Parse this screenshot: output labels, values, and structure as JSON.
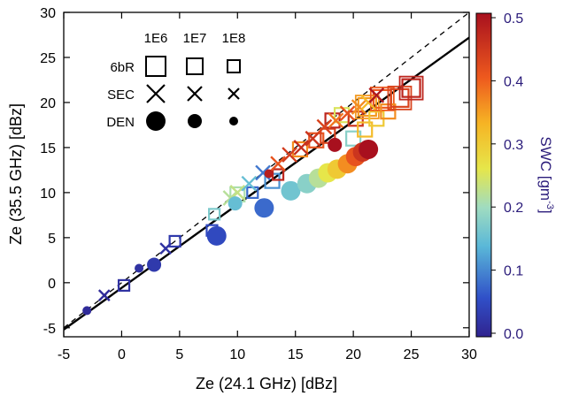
{
  "chart_data": {
    "type": "scatter",
    "xlabel": "Ze (24.1 GHz) [dBz]",
    "ylabel": "Ze (35.5 GHz) [dBz]",
    "xlim": [
      -5,
      30
    ],
    "ylim": [
      -6,
      30
    ],
    "x_ticks": [
      "-5",
      "0",
      "5",
      "10",
      "15",
      "20",
      "25",
      "30"
    ],
    "y_ticks": [
      "-5",
      "0",
      "5",
      "10",
      "15",
      "20",
      "25",
      "30"
    ],
    "reference_lines": [
      {
        "style": "dashed",
        "note": "1:1",
        "points": [
          [
            -5,
            -5
          ],
          [
            30,
            30
          ]
        ]
      },
      {
        "style": "solid",
        "points": [
          [
            -5,
            -5.2
          ],
          [
            30,
            27.2
          ]
        ]
      }
    ],
    "colorbar": {
      "label": "SWC [gm",
      "label_superscript": "-3",
      "label_close": "]",
      "range": [
        0,
        0.5
      ],
      "ticks": [
        "0.0",
        "0.1",
        "0.2",
        "0.3",
        "0.4",
        "0.5"
      ]
    },
    "legend": {
      "position": "top-left",
      "columns": [
        "1E6",
        "1E7",
        "1E8"
      ],
      "rows": [
        {
          "label": "6bR",
          "marker": "square"
        },
        {
          "label": "SEC",
          "marker": "x"
        },
        {
          "label": "DEN",
          "marker": "circle"
        }
      ]
    },
    "series": [
      {
        "name": "6bR",
        "marker": "square",
        "points": [
          {
            "x": 0.2,
            "y": -0.3,
            "swc": 0.02,
            "size": 1
          },
          {
            "x": 4.6,
            "y": 4.6,
            "swc": 0.03,
            "size": 1
          },
          {
            "x": 7.8,
            "y": 5.8,
            "swc": 0.05,
            "size": 1
          },
          {
            "x": 8.0,
            "y": 7.6,
            "swc": 0.17,
            "size": 1
          },
          {
            "x": 10.0,
            "y": 9.8,
            "swc": 0.21,
            "size": 2
          },
          {
            "x": 11.3,
            "y": 10.0,
            "swc": 0.08,
            "size": 1
          },
          {
            "x": 13.0,
            "y": 11.3,
            "swc": 0.11,
            "size": 2
          },
          {
            "x": 13.5,
            "y": 12.0,
            "swc": 0.47,
            "size": 1
          },
          {
            "x": 15.4,
            "y": 14.8,
            "swc": 0.36,
            "size": 2
          },
          {
            "x": 16.8,
            "y": 15.8,
            "swc": 0.41,
            "size": 2
          },
          {
            "x": 17.8,
            "y": 16.3,
            "swc": 0.43,
            "size": 2
          },
          {
            "x": 18.2,
            "y": 18.0,
            "swc": 0.47,
            "size": 2
          },
          {
            "x": 19.0,
            "y": 18.6,
            "swc": 0.25,
            "size": 2
          },
          {
            "x": 20.0,
            "y": 16.0,
            "swc": 0.18,
            "size": 2
          },
          {
            "x": 20.2,
            "y": 18.2,
            "swc": 0.45,
            "size": 2
          },
          {
            "x": 21.0,
            "y": 17.0,
            "swc": 0.32,
            "size": 2
          },
          {
            "x": 21.2,
            "y": 19.5,
            "swc": 0.35,
            "size": 3
          },
          {
            "x": 22.0,
            "y": 18.2,
            "swc": 0.3,
            "size": 2
          },
          {
            "x": 22.5,
            "y": 20.4,
            "swc": 0.4,
            "size": 3
          },
          {
            "x": 23.0,
            "y": 19.0,
            "swc": 0.36,
            "size": 2
          },
          {
            "x": 24.0,
            "y": 20.5,
            "swc": 0.43,
            "size": 3
          },
          {
            "x": 25.0,
            "y": 21.6,
            "swc": 0.47,
            "size": 3
          }
        ]
      },
      {
        "name": "SEC",
        "marker": "x",
        "points": [
          {
            "x": -1.5,
            "y": -1.4,
            "swc": 0.01,
            "size": 1
          },
          {
            "x": 3.8,
            "y": 3.8,
            "swc": 0.02,
            "size": 1
          },
          {
            "x": 9.4,
            "y": 9.4,
            "swc": 0.22,
            "size": 2
          },
          {
            "x": 10.0,
            "y": 10.0,
            "swc": 0.23,
            "size": 2
          },
          {
            "x": 11.0,
            "y": 11.0,
            "swc": 0.15,
            "size": 2
          },
          {
            "x": 12.2,
            "y": 12.2,
            "swc": 0.09,
            "size": 2
          },
          {
            "x": 13.5,
            "y": 13.2,
            "swc": 0.41,
            "size": 2
          },
          {
            "x": 14.5,
            "y": 14.2,
            "swc": 0.44,
            "size": 2
          },
          {
            "x": 15.5,
            "y": 15.0,
            "swc": 0.46,
            "size": 2
          },
          {
            "x": 16.5,
            "y": 16.0,
            "swc": 0.45,
            "size": 2
          },
          {
            "x": 17.5,
            "y": 17.3,
            "swc": 0.43,
            "size": 2
          },
          {
            "x": 18.5,
            "y": 18.0,
            "swc": 0.38,
            "size": 2
          },
          {
            "x": 19.5,
            "y": 18.8,
            "swc": 0.41,
            "size": 2
          },
          {
            "x": 20.5,
            "y": 19.5,
            "swc": 0.36,
            "size": 2
          },
          {
            "x": 21.3,
            "y": 20.0,
            "swc": 0.32,
            "size": 2
          },
          {
            "x": 22.0,
            "y": 20.8,
            "swc": 0.49,
            "size": 2
          }
        ]
      },
      {
        "name": "DEN",
        "marker": "circle",
        "points": [
          {
            "x": -3.0,
            "y": -3.1,
            "swc": 0.01,
            "size": 1
          },
          {
            "x": 1.5,
            "y": 1.6,
            "swc": 0.02,
            "size": 1
          },
          {
            "x": 2.8,
            "y": 2.0,
            "swc": 0.03,
            "size": 2
          },
          {
            "x": 8.2,
            "y": 5.2,
            "swc": 0.05,
            "size": 3
          },
          {
            "x": 9.8,
            "y": 8.8,
            "swc": 0.15,
            "size": 2
          },
          {
            "x": 12.3,
            "y": 8.3,
            "swc": 0.08,
            "size": 3
          },
          {
            "x": 12.7,
            "y": 12.1,
            "swc": 0.48,
            "size": 1
          },
          {
            "x": 14.6,
            "y": 10.2,
            "swc": 0.16,
            "size": 3
          },
          {
            "x": 16.0,
            "y": 11.0,
            "swc": 0.18,
            "size": 3
          },
          {
            "x": 17.0,
            "y": 11.6,
            "swc": 0.22,
            "size": 3
          },
          {
            "x": 17.8,
            "y": 12.2,
            "swc": 0.26,
            "size": 3
          },
          {
            "x": 18.4,
            "y": 15.3,
            "swc": 0.5,
            "size": 2
          },
          {
            "x": 18.6,
            "y": 12.6,
            "swc": 0.3,
            "size": 3
          },
          {
            "x": 19.5,
            "y": 13.2,
            "swc": 0.36,
            "size": 3
          },
          {
            "x": 20.2,
            "y": 14.0,
            "swc": 0.41,
            "size": 3
          },
          {
            "x": 20.8,
            "y": 14.5,
            "swc": 0.45,
            "size": 3
          },
          {
            "x": 21.3,
            "y": 14.8,
            "swc": 0.5,
            "size": 3
          }
        ]
      }
    ]
  }
}
